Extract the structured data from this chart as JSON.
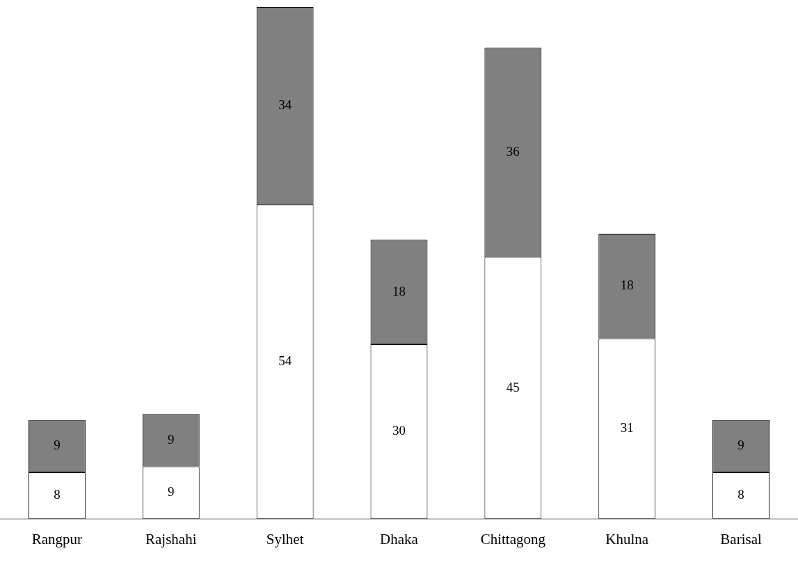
{
  "chart_data": {
    "type": "bar",
    "categories": [
      "Rangpur",
      "Rajshahi",
      "Sylhet",
      "Dhaka",
      "Chittagong",
      "Khulna",
      "Barisal"
    ],
    "series": [
      {
        "color": "#ffffff",
        "values": [
          8,
          9,
          54,
          30,
          45,
          31,
          8
        ]
      },
      {
        "color": "#808080",
        "values": [
          9,
          9,
          34,
          18,
          36,
          18,
          9
        ]
      }
    ],
    "stacked": true,
    "data_labels": true,
    "legend": false,
    "grid": false,
    "tick_labels": "x"
  }
}
